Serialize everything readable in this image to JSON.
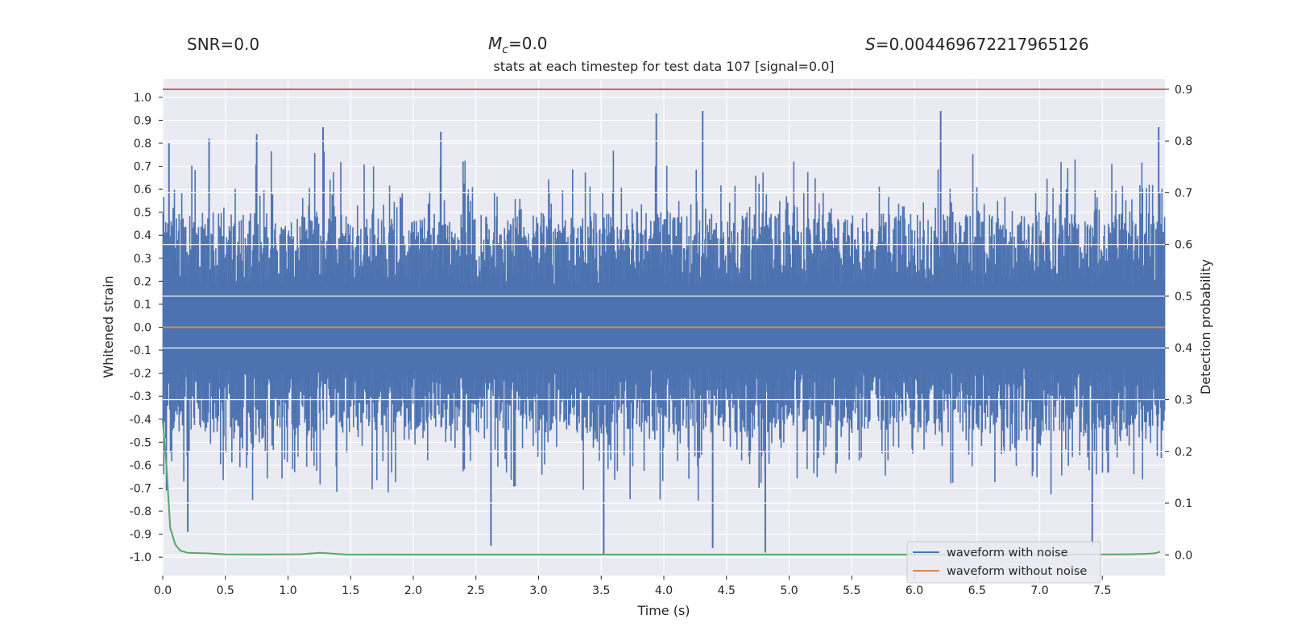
{
  "chart_data": {
    "type": "line",
    "title": "stats at each timestep for test data 107 [signal=0.0]",
    "header": {
      "snr": "SNR=0.0",
      "mc_symbol": "M",
      "mc_sub": "c",
      "mc_value": "=0.0",
      "s_symbol": "S",
      "s_value": "=0.004469672217965126"
    },
    "xlabel": "Time (s)",
    "ylabel_left": "Whitened strain",
    "ylabel_right": "Detection probability",
    "xlim": [
      0.0,
      8.0
    ],
    "ylim_left": [
      -1.08,
      1.08
    ],
    "ylim_right": [
      -0.04,
      0.92
    ],
    "x_ticks": [
      "0.0",
      "0.5",
      "1.0",
      "1.5",
      "2.0",
      "2.5",
      "3.0",
      "3.5",
      "4.0",
      "4.5",
      "5.0",
      "5.5",
      "6.0",
      "6.5",
      "7.0",
      "7.5"
    ],
    "y_ticks_left": [
      "1.0",
      "0.9",
      "0.8",
      "0.7",
      "0.6",
      "0.5",
      "0.4",
      "0.3",
      "0.2",
      "0.1",
      "0.0",
      "-0.1",
      "-0.2",
      "-0.3",
      "-0.4",
      "-0.5",
      "-0.6",
      "-0.7",
      "-0.8",
      "-0.9",
      "-1.0"
    ],
    "y_ticks_right": [
      "0.9",
      "0.8",
      "0.7",
      "0.6",
      "0.5",
      "0.4",
      "0.3",
      "0.2",
      "0.1",
      "0.0"
    ],
    "threshold": {
      "value": 0.9,
      "axis": "right",
      "color": "#c44e52"
    },
    "grid": true,
    "legend_position": "bottom-right",
    "series": [
      {
        "name": "waveform with noise",
        "axis": "left",
        "color": "#4c72b0",
        "description": "normalized noisy strain, dense oscillation spanning roughly -1.0 to 0.95",
        "notable_peaks": [
          {
            "x": 0.05,
            "y": 0.8
          },
          {
            "x": 0.37,
            "y": 0.82
          },
          {
            "x": 0.75,
            "y": 0.84
          },
          {
            "x": 1.28,
            "y": 0.87
          },
          {
            "x": 2.22,
            "y": 0.85
          },
          {
            "x": 3.94,
            "y": 0.93
          },
          {
            "x": 4.31,
            "y": 0.94
          },
          {
            "x": 6.21,
            "y": 0.94
          },
          {
            "x": 7.95,
            "y": 0.87
          }
        ],
        "notable_troughs": [
          {
            "x": 0.2,
            "y": -0.89
          },
          {
            "x": 2.62,
            "y": -0.95
          },
          {
            "x": 3.52,
            "y": -0.99
          },
          {
            "x": 4.39,
            "y": -0.96
          },
          {
            "x": 4.81,
            "y": -0.98
          },
          {
            "x": 7.42,
            "y": -0.95
          }
        ]
      },
      {
        "name": "waveform without noise",
        "axis": "left",
        "color": "#dd8452",
        "x": [
          0.0,
          8.0
        ],
        "y": [
          0.0,
          0.0
        ]
      },
      {
        "name": "detection probability",
        "axis": "right",
        "color": "#55a868",
        "x": [
          0.0,
          0.03,
          0.06,
          0.1,
          0.14,
          0.2,
          0.35,
          0.5,
          0.8,
          1.1,
          1.2,
          1.26,
          1.32,
          1.45,
          2.0,
          4.0,
          6.0,
          7.0,
          7.5,
          7.7,
          7.85,
          7.92,
          7.96
        ],
        "y": [
          0.26,
          0.17,
          0.052,
          0.02,
          0.008,
          0.004,
          0.003,
          0.001,
          0.0008,
          0.0012,
          0.003,
          0.004,
          0.003,
          0.0008,
          0.0006,
          0.0006,
          0.0006,
          0.0006,
          0.0008,
          0.001,
          0.002,
          0.003,
          0.006
        ]
      }
    ]
  }
}
